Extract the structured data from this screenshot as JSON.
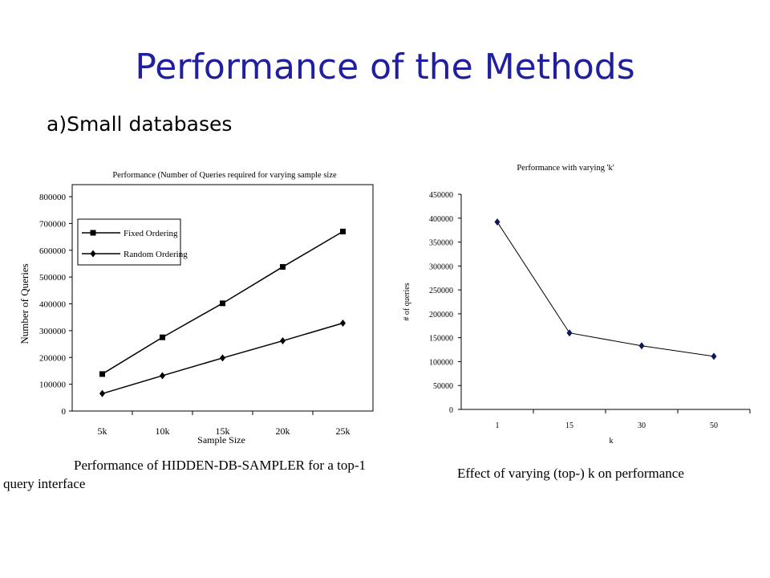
{
  "slide": {
    "title": "Performance of the Methods",
    "subtitle": "a)Small databases"
  },
  "captions": {
    "left_line1": "Performance of HIDDEN-DB-SAMPLER for a top-1",
    "left_line2": "query interface",
    "right": "Effect of varying (top-) k on performance"
  },
  "chart_data": [
    {
      "type": "line",
      "title": "Performance (Number of Queries required for varying sample size",
      "xlabel": "Sample Size",
      "ylabel": "Number of Queries",
      "categories": [
        "5k",
        "10k",
        "15k",
        "20k",
        "25k"
      ],
      "ylim": [
        0,
        800000
      ],
      "yticks": [
        "0",
        "100000",
        "200000",
        "300000",
        "400000",
        "500000",
        "600000",
        "700000",
        "800000"
      ],
      "grid": false,
      "legend_position": "top-left",
      "series": [
        {
          "name": "Fixed Ordering",
          "marker": "square",
          "values": [
            138000,
            275000,
            402000,
            538000,
            670000
          ]
        },
        {
          "name": "Random Ordering",
          "marker": "diamond",
          "values": [
            65000,
            132000,
            198000,
            262000,
            328000
          ]
        }
      ]
    },
    {
      "type": "line",
      "title": "Performance with varying 'k'",
      "xlabel": "k",
      "ylabel": "# of queries",
      "categories": [
        "1",
        "15",
        "30",
        "50"
      ],
      "ylim": [
        0,
        450000
      ],
      "yticks": [
        "0",
        "50000",
        "100000",
        "150000",
        "200000",
        "250000",
        "300000",
        "350000",
        "400000",
        "450000"
      ],
      "grid": false,
      "series": [
        {
          "values": [
            392000,
            160000,
            133000,
            111000
          ],
          "marker": "diamond",
          "color": "#0a1a5c"
        }
      ]
    }
  ]
}
